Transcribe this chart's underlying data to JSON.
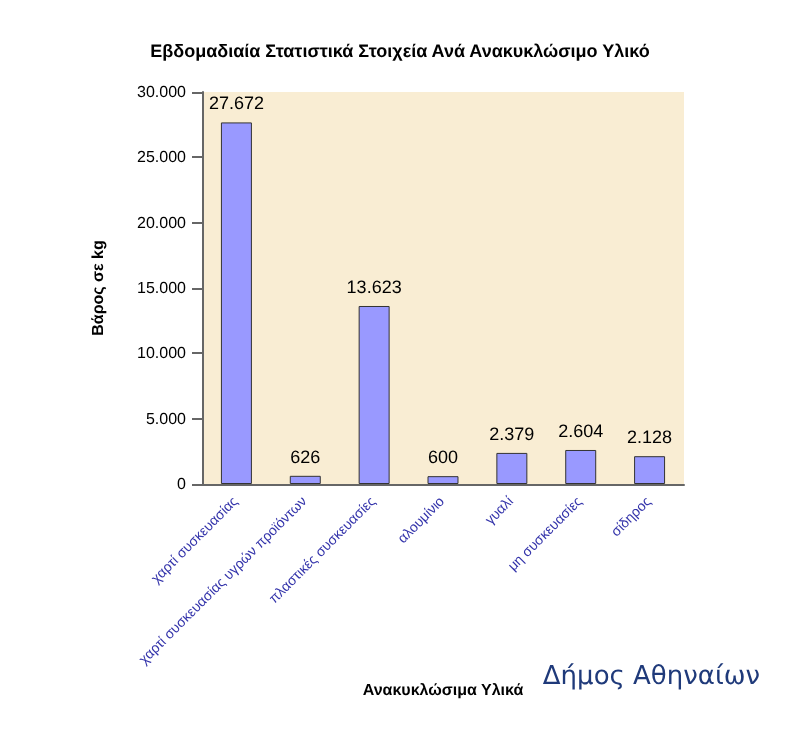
{
  "chart_data": {
    "type": "bar",
    "title": "Εβδομαδιαία Στατιστικά Στοιχεία Ανά Ανακυκλώσιμο Υλικό",
    "xlabel": "Ανακυκλώσιμα Υλικά",
    "ylabel": "Βάρος σε kg",
    "categories": [
      "χαρτί συσκευασίας",
      "χαρτί συσκευασίας υγρών προϊόντων",
      "πλαστικές συσκευασίες",
      "αλουμίνιο",
      "γυαλί",
      "μη συσκευασίες",
      "σίδηρος"
    ],
    "values": [
      27672,
      626,
      13623,
      600,
      2379,
      2604,
      2128
    ],
    "value_labels": [
      "27.672",
      "626",
      "13.623",
      "600",
      "2.379",
      "2.604",
      "2.128"
    ],
    "color": "#9999ff",
    "ylim": [
      0,
      30000
    ],
    "yticks": [
      0,
      {
        "value": 5000,
        "label": "5.000"
      },
      {
        "value": 10000,
        "label": "10.000"
      },
      {
        "value": 15000,
        "label": "15.000"
      },
      {
        "value": 20000,
        "label": "20.000"
      },
      {
        "value": 25000,
        "label": "25.000"
      },
      {
        "value": 30000,
        "label": "30.000"
      }
    ],
    "grid": false,
    "annotations": [
      "Δήμος Αθηναίων"
    ]
  }
}
